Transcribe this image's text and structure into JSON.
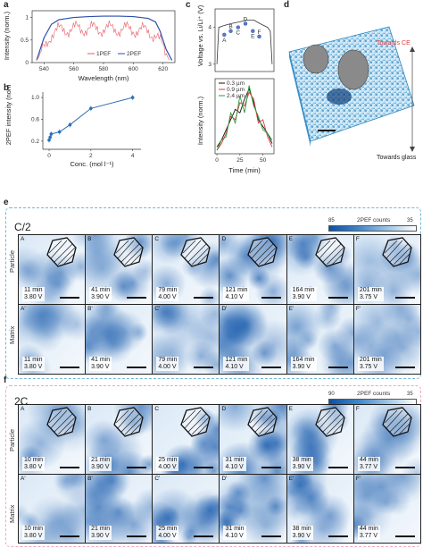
{
  "panel_labels": {
    "a": "a",
    "b": "b",
    "c": "c",
    "d": "d",
    "e": "e",
    "f": "f"
  },
  "panel_a": {
    "ylabel": "Intensity (norm.)",
    "xlabel": "Wavelength (nm)",
    "xticks": [
      "540",
      "560",
      "580",
      "600",
      "620"
    ],
    "yticks": [
      "0",
      "0.5",
      "1"
    ],
    "legend": [
      "1PEF",
      "2PEF"
    ],
    "colors": {
      "1PEF": "#e85a66",
      "2PEF": "#2b4fa8"
    }
  },
  "panel_b": {
    "ylabel": "2PEF intensity (norm.)",
    "xlabel": "Conc. (mol l⁻¹)",
    "xticks": [
      "0",
      "2",
      "4"
    ],
    "yticks": [
      "0.2",
      "0.6",
      "1.0"
    ],
    "color": "#2c6fb8"
  },
  "panel_c": {
    "top_ylabel": "Voltage vs. Li/Li⁺ (V)",
    "top_yticks": [
      "3",
      "4"
    ],
    "point_labels": [
      "A",
      "B",
      "C",
      "D",
      "E",
      "F"
    ],
    "bottom_ylabel": "Intensity (norm.)",
    "xlabel": "Time (min)",
    "xticks": [
      "0",
      "25",
      "50"
    ],
    "legend": [
      "0.3 µm",
      "0.9 µm",
      "2.4 µm"
    ],
    "colors": {
      "black": "#111111",
      "red": "#e2343a",
      "green": "#2c9a3a"
    }
  },
  "panel_d": {
    "top_text": "Towards CE",
    "bottom_text": "Towards glass"
  },
  "chart_data": [
    {
      "type": "line",
      "panel": "a",
      "xlabel": "Wavelength (nm)",
      "ylabel": "Intensity (norm.)",
      "xlim": [
        532,
        628
      ],
      "ylim": [
        0,
        1.15
      ],
      "series": [
        {
          "name": "2PEF",
          "x": [
            535,
            540,
            545,
            550,
            560,
            570,
            580,
            590,
            600,
            610,
            615,
            618,
            622,
            626
          ],
          "values": [
            0.05,
            0.55,
            0.85,
            0.95,
            1.0,
            1.02,
            1.03,
            1.03,
            1.02,
            0.98,
            0.9,
            0.7,
            0.3,
            0.05
          ]
        },
        {
          "name": "1PEF",
          "x": [
            535,
            540,
            545,
            550,
            560,
            570,
            580,
            590,
            600,
            610,
            615,
            620,
            625
          ],
          "values": [
            0.05,
            0.3,
            0.65,
            0.72,
            0.75,
            0.75,
            0.75,
            0.74,
            0.73,
            0.7,
            0.6,
            0.35,
            0.05
          ]
        }
      ]
    },
    {
      "type": "line",
      "panel": "b",
      "xlabel": "Conc. (mol l⁻¹)",
      "ylabel": "2PEF intensity (norm.)",
      "xlim": [
        -0.3,
        4.4
      ],
      "ylim": [
        0.05,
        1.1
      ],
      "x": [
        0,
        0.05,
        0.1,
        0.5,
        1.0,
        2.0,
        4.0
      ],
      "values": [
        0.22,
        0.27,
        0.33,
        0.37,
        0.5,
        0.8,
        1.0
      ]
    },
    {
      "type": "line",
      "panel": "c-top",
      "ylabel": "Voltage vs. Li/Li⁺ (V)",
      "ylim": [
        2.8,
        4.5
      ],
      "xlim": [
        -2,
        62
      ],
      "x": [
        0,
        2,
        8,
        15,
        25,
        32,
        40,
        47,
        55,
        58,
        60
      ],
      "values": [
        3.0,
        4.0,
        4.05,
        4.1,
        4.15,
        4.2,
        4.2,
        4.1,
        4.0,
        3.9,
        3.0
      ],
      "points": {
        "labels": [
          "A",
          "B",
          "C",
          "D",
          "E",
          "F"
        ],
        "x": [
          8,
          15,
          23,
          31,
          39,
          46
        ],
        "values": [
          3.8,
          3.9,
          4.0,
          4.1,
          3.9,
          3.75
        ]
      }
    },
    {
      "type": "line",
      "panel": "c-bottom",
      "xlabel": "Time (min)",
      "ylabel": "Intensity (norm.)",
      "xlim": [
        -2,
        62
      ],
      "ylim": [
        0,
        1.1
      ],
      "x": [
        0,
        5,
        10,
        15,
        20,
        25,
        30,
        35,
        40,
        45,
        50,
        55,
        60
      ],
      "series": [
        {
          "name": "0.3 µm",
          "values": [
            0.1,
            0.2,
            0.35,
            0.5,
            0.65,
            0.6,
            0.8,
            0.95,
            0.75,
            0.5,
            0.4,
            0.3,
            0.15
          ]
        },
        {
          "name": "0.9 µm",
          "values": [
            0.05,
            0.15,
            0.3,
            0.55,
            0.5,
            0.75,
            0.7,
            0.9,
            0.8,
            0.45,
            0.5,
            0.25,
            0.1
          ]
        },
        {
          "name": "2.4 µm",
          "values": [
            0.05,
            0.2,
            0.25,
            0.6,
            0.45,
            0.85,
            0.6,
            1.0,
            0.7,
            0.55,
            0.35,
            0.3,
            0.2
          ]
        }
      ]
    }
  ],
  "section_e": {
    "rate": "C/2",
    "cbar_title": "2PEF counts",
    "cbar_max": "85",
    "cbar_min": "35",
    "row_labels": [
      "Particle",
      "Matrix"
    ],
    "particle": [
      {
        "label": "A",
        "time": "11 min",
        "volt": "3.80 V"
      },
      {
        "label": "B",
        "time": "41 min",
        "volt": "3.90 V"
      },
      {
        "label": "C",
        "time": "79 min",
        "volt": "4.00 V"
      },
      {
        "label": "D",
        "time": "121 min",
        "volt": "4.10 V"
      },
      {
        "label": "E",
        "time": "164 min",
        "volt": "3.90 V"
      },
      {
        "label": "F",
        "time": "201 min",
        "volt": "3.75 V"
      }
    ],
    "matrix": [
      {
        "label": "A'",
        "time": "11 min",
        "volt": "3.80 V"
      },
      {
        "label": "B'",
        "time": "41 min",
        "volt": "3.90 V"
      },
      {
        "label": "C'",
        "time": "79 min",
        "volt": "4.00 V"
      },
      {
        "label": "D'",
        "time": "121 min",
        "volt": "4.10 V"
      },
      {
        "label": "E'",
        "time": "164 min",
        "volt": "3.90 V"
      },
      {
        "label": "F'",
        "time": "201 min",
        "volt": "3.75 V"
      }
    ]
  },
  "section_f": {
    "rate": "2C",
    "cbar_title": "2PEF counts",
    "cbar_max": "90",
    "cbar_min": "35",
    "row_labels": [
      "Particle",
      "Matrix"
    ],
    "particle": [
      {
        "label": "A",
        "time": "10 min",
        "volt": "3.80 V"
      },
      {
        "label": "B",
        "time": "21 min",
        "volt": "3.90 V"
      },
      {
        "label": "C",
        "time": "25 min",
        "volt": "4.00 V"
      },
      {
        "label": "D",
        "time": "31 min",
        "volt": "4.10 V"
      },
      {
        "label": "E",
        "time": "38 min",
        "volt": "3.90 V"
      },
      {
        "label": "F",
        "time": "44 min",
        "volt": "3.77 V"
      }
    ],
    "matrix": [
      {
        "label": "A'",
        "time": "10 min",
        "volt": "3.80 V"
      },
      {
        "label": "B'",
        "time": "21 min",
        "volt": "3.90 V"
      },
      {
        "label": "C'",
        "time": "25 min",
        "volt": "4.00 V"
      },
      {
        "label": "D'",
        "time": "31 min",
        "volt": "4.10 V"
      },
      {
        "label": "E'",
        "time": "38 min",
        "volt": "3.90 V"
      },
      {
        "label": "F'",
        "time": "44 min",
        "volt": "3.77 V"
      }
    ]
  }
}
